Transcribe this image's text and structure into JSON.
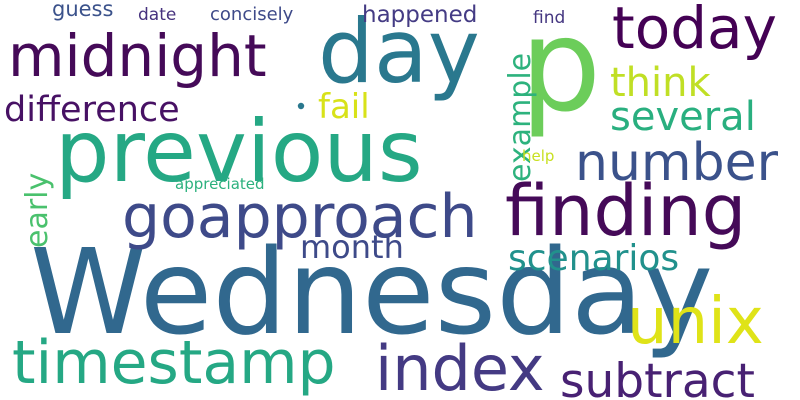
{
  "cloud": {
    "background": "#ffffff",
    "words": [
      {
        "text": "Wednesday",
        "color": "#31688e"
      },
      {
        "text": "previous",
        "color": "#25a884"
      },
      {
        "text": "p",
        "color": "#6ccd5a"
      },
      {
        "text": "day",
        "color": "#2a788e"
      },
      {
        "text": "finding",
        "color": "#450a58"
      },
      {
        "text": "midnight",
        "color": "#450a58"
      },
      {
        "text": "today",
        "color": "#440154"
      },
      {
        "text": "goapproach",
        "color": "#3e4a89"
      },
      {
        "text": "number",
        "color": "#3b528b"
      },
      {
        "text": "timestamp",
        "color": "#25a884"
      },
      {
        "text": "index",
        "color": "#443a83"
      },
      {
        "text": "unix",
        "color": "#dfe318"
      },
      {
        "text": "subtract",
        "color": "#482173"
      },
      {
        "text": "difference",
        "color": "#471164"
      },
      {
        "text": "several",
        "color": "#29af7f"
      },
      {
        "text": "think",
        "color": "#c0df25"
      },
      {
        "text": "example",
        "color": "#2db27d"
      },
      {
        "text": "scenarios",
        "color": "#21918c"
      },
      {
        "text": "month",
        "color": "#3e4a89"
      },
      {
        "text": "fail",
        "color": "#d8e219"
      },
      {
        "text": "early",
        "color": "#4ac16d"
      },
      {
        "text": "happened",
        "color": "#443b84"
      },
      {
        "text": "guess",
        "color": "#3b528b"
      },
      {
        "text": "date",
        "color": "#46327e"
      },
      {
        "text": "concisely",
        "color": "#3e4a89"
      },
      {
        "text": "find",
        "color": "#453781"
      },
      {
        "text": "help",
        "color": "#c8e020"
      },
      {
        "text": "appreciated",
        "color": "#2cb17e"
      }
    ]
  }
}
